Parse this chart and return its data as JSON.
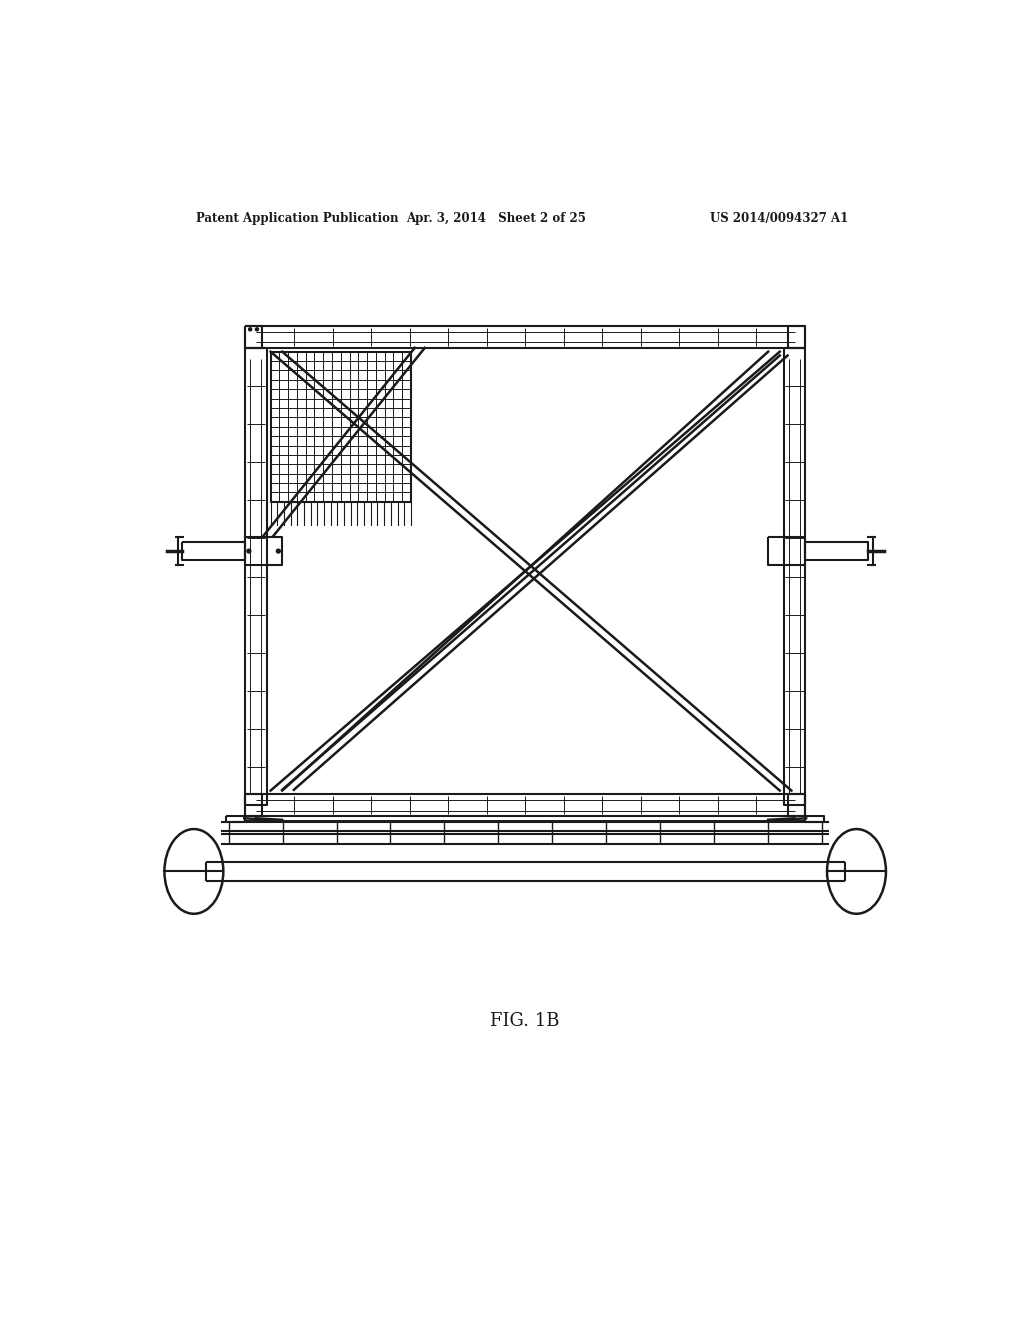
{
  "bg_color": "#ffffff",
  "line_color": "#1a1a1a",
  "gray_color": "#888888",
  "header_text_left": "Patent Application Publication",
  "header_text_center": "Apr. 3, 2014   Sheet 2 of 25",
  "header_text_right": "US 2014/0094327 A1",
  "caption": "FIG. 1B",
  "lw": 1.5,
  "lw_thin": 0.7,
  "lw_med": 1.0
}
